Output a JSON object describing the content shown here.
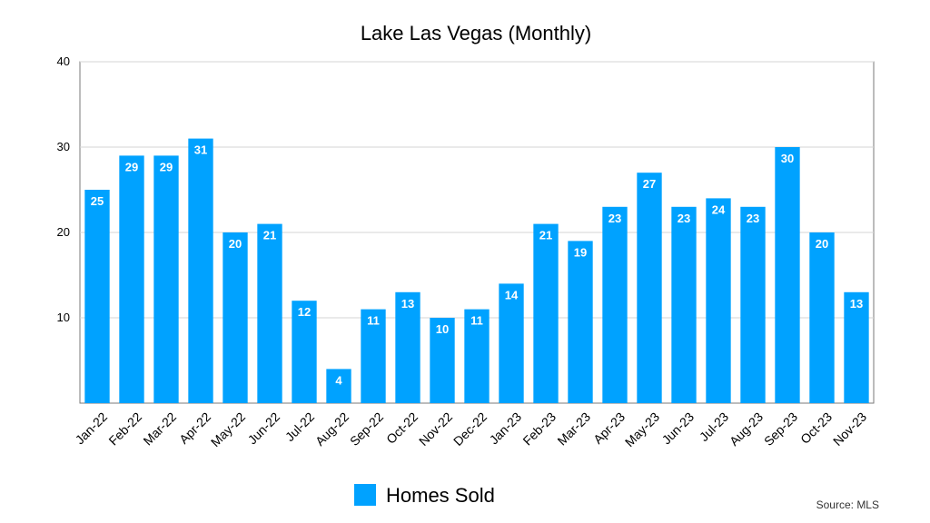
{
  "chart_data": {
    "type": "bar",
    "title": "Lake Las Vegas (Monthly)",
    "xlabel": "",
    "ylabel": "",
    "ylim": [
      0,
      40
    ],
    "yticks": [
      10,
      20,
      30,
      40
    ],
    "grid": true,
    "legend_position": "bottom",
    "categories": [
      "Jan-22",
      "Feb-22",
      "Mar-22",
      "Apr-22",
      "May-22",
      "Jun-22",
      "Jul-22",
      "Aug-22",
      "Sep-22",
      "Oct-22",
      "Nov-22",
      "Dec-22",
      "Jan-23",
      "Feb-23",
      "Mar-23",
      "Apr-23",
      "May-23",
      "Jun-23",
      "Jul-23",
      "Aug-23",
      "Sep-23",
      "Oct-23",
      "Nov-23"
    ],
    "series": [
      {
        "name": "Homes Sold",
        "color": "#00a2ff",
        "values": [
          25,
          29,
          29,
          31,
          20,
          21,
          12,
          4,
          11,
          13,
          10,
          11,
          14,
          21,
          19,
          23,
          27,
          23,
          24,
          23,
          30,
          20,
          13
        ]
      }
    ]
  },
  "source_note": "Source: MLS"
}
